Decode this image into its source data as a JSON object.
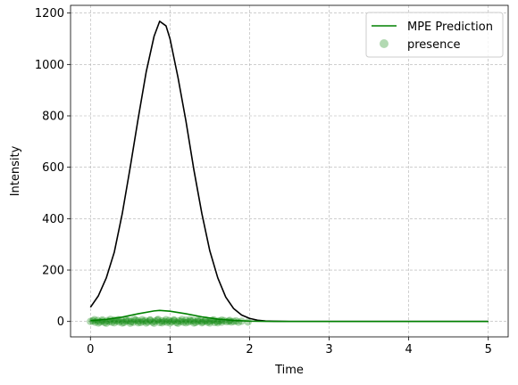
{
  "chart_data": {
    "type": "line",
    "title": "",
    "xlabel": "Time",
    "ylabel": "Intensity",
    "xlim": [
      -0.25,
      5.25
    ],
    "ylim": [
      -60,
      1230
    ],
    "x_ticks": [
      0,
      1,
      2,
      3,
      4,
      5
    ],
    "y_ticks": [
      0,
      200,
      400,
      600,
      800,
      1000,
      1200
    ],
    "grid": true,
    "legend_position": "top-right",
    "series": [
      {
        "type": "line",
        "color": "#000000",
        "x": [
          0,
          0.1,
          0.2,
          0.3,
          0.4,
          0.5,
          0.6,
          0.7,
          0.8,
          0.87,
          0.95,
          1.0,
          1.1,
          1.2,
          1.3,
          1.4,
          1.5,
          1.6,
          1.7,
          1.8,
          1.9,
          2.0,
          2.1,
          2.2,
          2.3,
          2.5,
          3.0,
          3.5,
          4.0,
          4.5,
          5.0
        ],
        "y": [
          55,
          100,
          170,
          270,
          420,
          600,
          790,
          970,
          1110,
          1168,
          1150,
          1100,
          950,
          780,
          590,
          420,
          275,
          170,
          95,
          50,
          25,
          12,
          5,
          2,
          1,
          0,
          0,
          0,
          0,
          0,
          0
        ]
      },
      {
        "name": "MPE Prediction",
        "type": "line",
        "color": "#008000",
        "x": [
          0,
          0.2,
          0.4,
          0.6,
          0.8,
          0.87,
          1.0,
          1.2,
          1.4,
          1.6,
          1.8,
          2.0,
          2.2,
          2.5,
          3.0,
          3.5,
          4.0,
          4.5,
          5.0
        ],
        "y": [
          3,
          8,
          17,
          30,
          41,
          43,
          40,
          30,
          18,
          9,
          4,
          1.5,
          0.5,
          0,
          0,
          0,
          0,
          0,
          0
        ]
      },
      {
        "name": "presence",
        "type": "scatter",
        "color": "#008000",
        "alpha": 0.3,
        "x": [
          0,
          0.03,
          0.06,
          0.09,
          0.12,
          0.15,
          0.18,
          0.21,
          0.24,
          0.27,
          0.3,
          0.33,
          0.36,
          0.39,
          0.42,
          0.45,
          0.48,
          0.51,
          0.54,
          0.57,
          0.6,
          0.63,
          0.66,
          0.69,
          0.72,
          0.75,
          0.78,
          0.81,
          0.84,
          0.87,
          0.9,
          0.93,
          0.96,
          0.99,
          1.02,
          1.05,
          1.08,
          1.11,
          1.14,
          1.17,
          1.2,
          1.23,
          1.26,
          1.29,
          1.32,
          1.35,
          1.38,
          1.41,
          1.44,
          1.47,
          1.5,
          1.53,
          1.56,
          1.59,
          1.62,
          1.65,
          1.68,
          1.71,
          1.74,
          1.77,
          1.8,
          1.83,
          1.86,
          1.9,
          1.98,
          0.05,
          0.15,
          0.25,
          0.35,
          0.45,
          0.55,
          0.65,
          0.75,
          0.85,
          0.95,
          1.05,
          1.15,
          1.25,
          1.35,
          1.45,
          1.55,
          1.65,
          1.75,
          0.1,
          0.2,
          0.3,
          0.4,
          0.5,
          0.6,
          0.7,
          0.8,
          0.9,
          1.0,
          1.1,
          1.2,
          1.3,
          1.4,
          1.5,
          1.6
        ],
        "y": [
          0,
          2,
          -3,
          4,
          -2,
          1,
          -4,
          3,
          0,
          -3,
          5,
          2,
          -2,
          4,
          -4,
          1,
          3,
          -1,
          -3,
          5,
          2,
          -4,
          0,
          3,
          -2,
          4,
          -3,
          1,
          5,
          -4,
          2,
          0,
          -3,
          4,
          -1,
          3,
          -4,
          2,
          0,
          -3,
          5,
          -2,
          1,
          4,
          -4,
          0,
          3,
          -2,
          2,
          -3,
          1,
          4,
          -4,
          0,
          2,
          -3,
          3,
          -1,
          1,
          -2,
          0,
          2,
          -3,
          1,
          -2,
          7,
          6,
          8,
          7,
          6,
          8,
          7,
          6,
          8,
          7,
          6,
          8,
          7,
          6,
          5,
          6,
          5,
          4,
          -6,
          -7,
          -5,
          -6,
          -7,
          -5,
          -6,
          -7,
          -5,
          -6,
          -7,
          -5,
          -6,
          -5,
          -6,
          -5
        ]
      }
    ],
    "legend": [
      {
        "label": "MPE Prediction",
        "kind": "line",
        "color": "#008000"
      },
      {
        "label": "presence",
        "kind": "marker",
        "color": "#008000"
      }
    ]
  }
}
